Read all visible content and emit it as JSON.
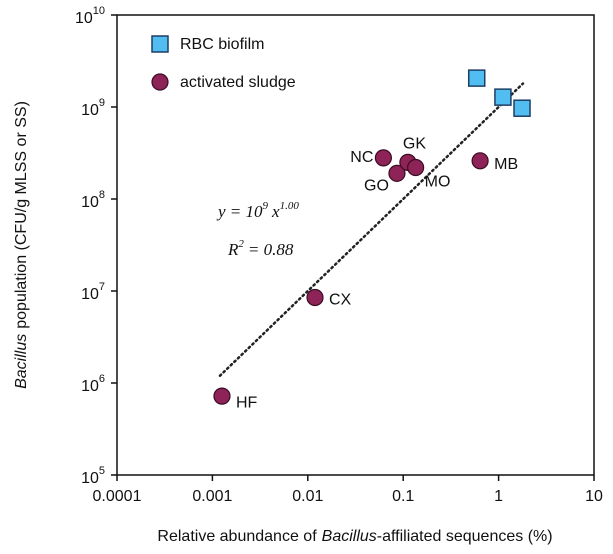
{
  "chart_data": {
    "type": "scatter",
    "x_label": [
      "Relative abundance of",
      "Bacillus",
      "-affiliated sequences (%)"
    ],
    "y_label": [
      "Bacillus",
      "population (CFU/g MLSS or SS)"
    ],
    "log_x": true,
    "log_y": true,
    "xlim": [
      0.0001,
      10
    ],
    "ylim": [
      100000,
      10000000000
    ],
    "xticks": [
      0.0001,
      0.001,
      0.01,
      0.1,
      1,
      10
    ],
    "yticks": [
      {
        "value": 100000,
        "label": "10",
        "exponent": "5"
      },
      {
        "value": 1000000,
        "label": "10",
        "exponent": "6"
      },
      {
        "value": 10000000,
        "label": "10",
        "exponent": "7"
      },
      {
        "value": 100000000,
        "label": "10",
        "exponent": "8"
      },
      {
        "value": 1000000000,
        "label": "10",
        "exponent": "9"
      },
      {
        "value": 10000000000,
        "label": "10",
        "exponent": "10"
      }
    ],
    "legend": "top-left",
    "series": [
      {
        "name": "RBC biofilm",
        "marker": "square",
        "color": "#52bdf0",
        "x": [
          0.59,
          1.11,
          1.76
        ],
        "values": [
          2060000000,
          1280000000,
          970000000
        ]
      },
      {
        "name": "activated sludge",
        "marker": "circle",
        "color": "#8e2358",
        "x": [
          0.00126,
          0.0119,
          0.062,
          0.086,
          0.112,
          0.135,
          0.64
        ],
        "values": [
          720000,
          8500000,
          280000000,
          190000000,
          250000000,
          220000000,
          260000000
        ],
        "point_labels": [
          "HF",
          "CX",
          "NC",
          "GO",
          "GK",
          "MO",
          "MB"
        ]
      }
    ],
    "fit_line": {
      "x": [
        0.0012,
        1.8
      ],
      "values": [
        1200000,
        1800000000
      ]
    },
    "fit_equation": [
      "y = 10",
      "9",
      "x",
      "1.00"
    ],
    "fit_r2": [
      "R",
      "2",
      "= 0.88"
    ]
  }
}
